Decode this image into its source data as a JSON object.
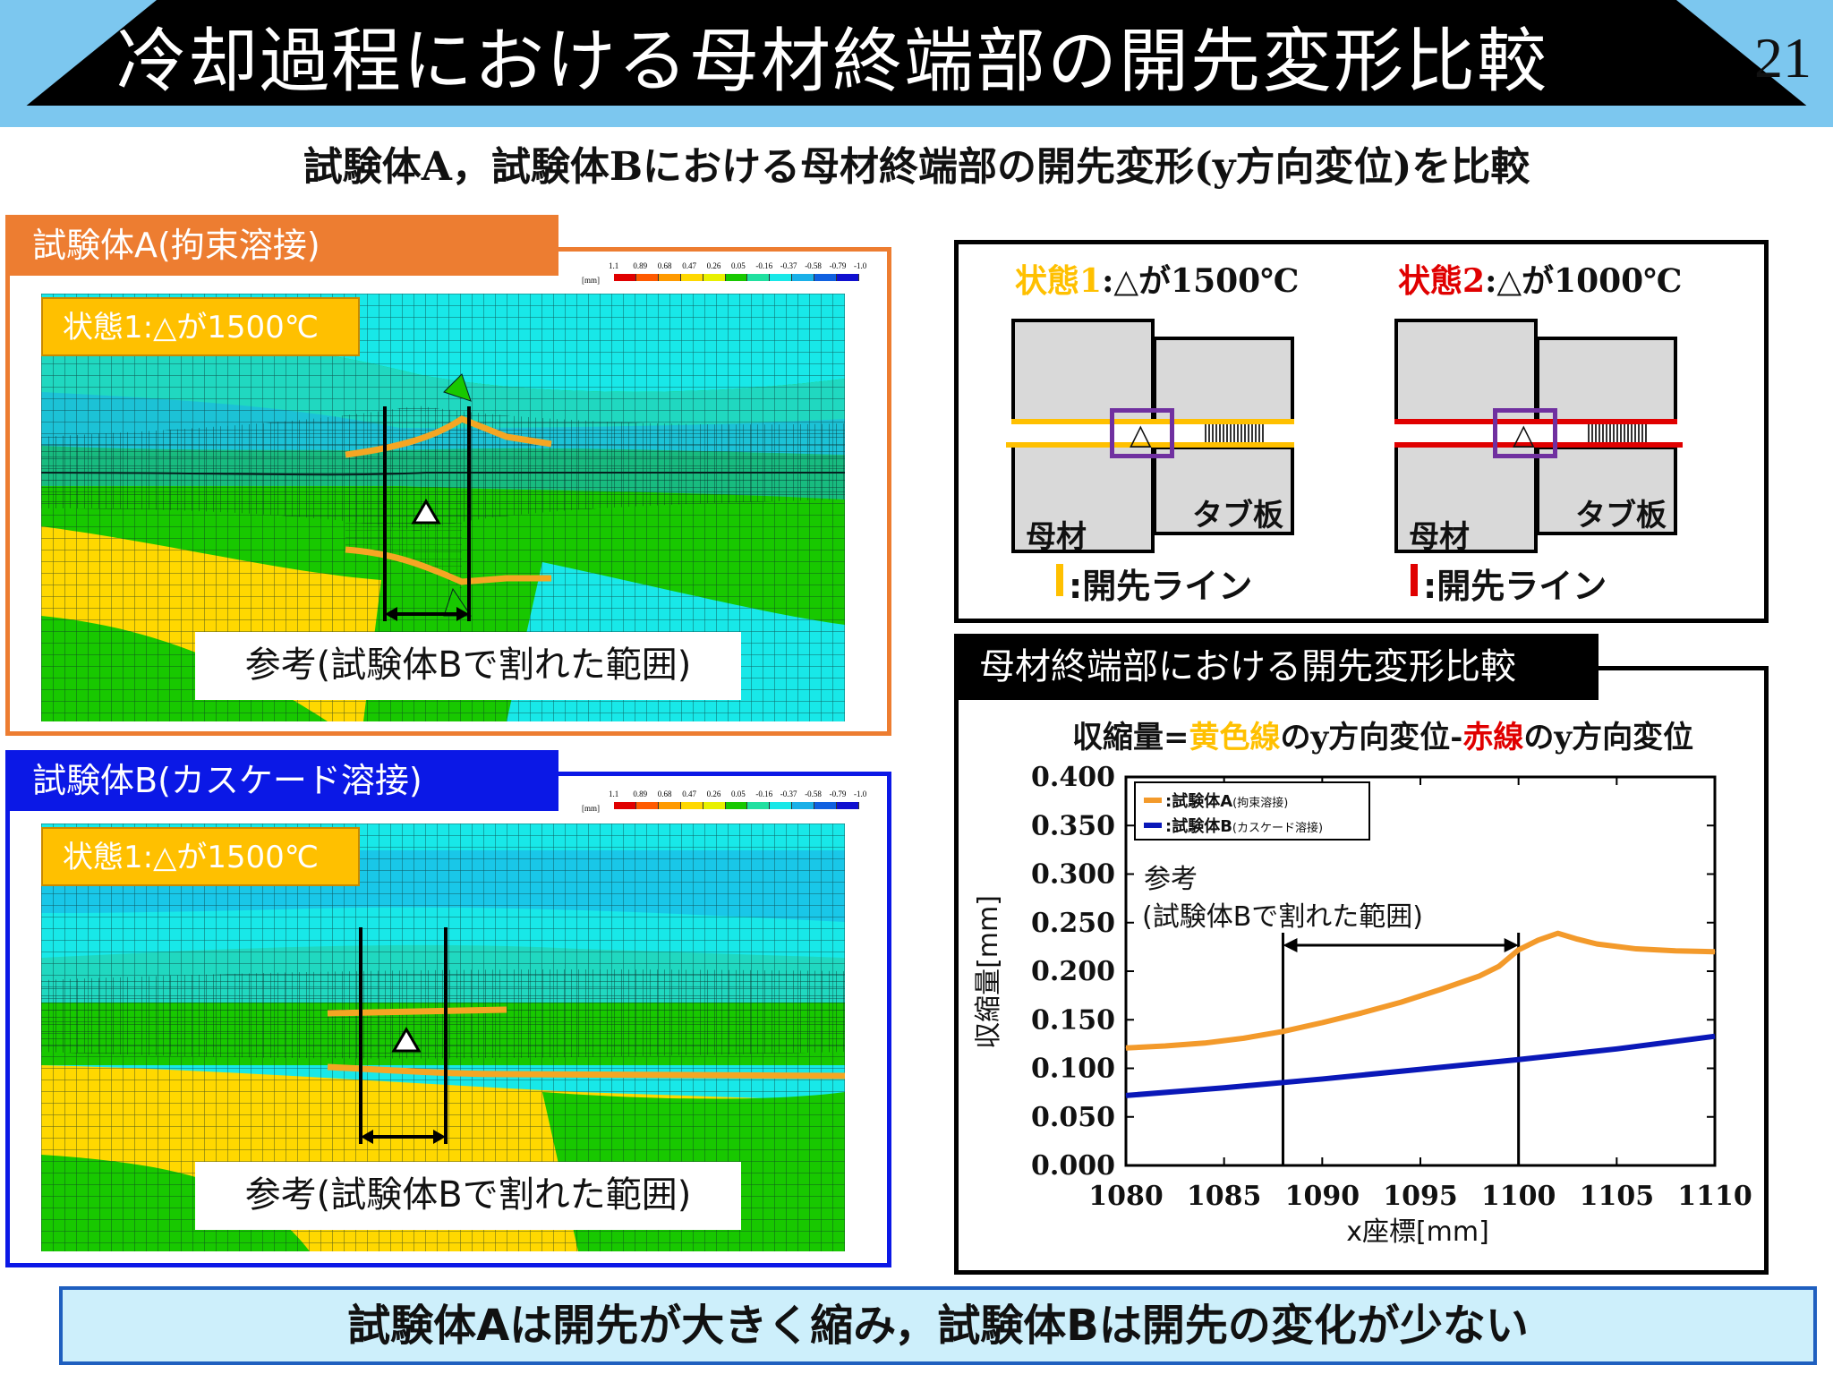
{
  "header": {
    "title": "冷却過程における母材終端部の開先変形比較",
    "page_number": "21"
  },
  "subtitle": "試験体A，試験体Bにおける母材終端部の開先変形(y方向変位)を比較",
  "panel_a": {
    "tab": "試験体A(拘束溶接)",
    "state_label": "状態1:△が1500℃",
    "ref_label": "参考(試験体Bで割れた範囲)",
    "marker": "△",
    "frame_color": "#ed7d31"
  },
  "panel_b": {
    "tab": "試験体B(カスケード溶接)",
    "state_label": "状態1:△が1500℃",
    "ref_label": "参考(試験体Bで割れた範囲)",
    "marker": "△",
    "frame_color": "#0b18e6"
  },
  "colorbar": {
    "unit": "[mm]",
    "ticks": [
      "1.1",
      "0.89",
      "0.68",
      "0.47",
      "0.26",
      "0.05",
      "-0.16",
      "-0.37",
      "-0.58",
      "-0.79",
      "-1.0"
    ],
    "colors": [
      "#e00000",
      "#ff5a00",
      "#ff9a00",
      "#ffd800",
      "#e8f000",
      "#18c800",
      "#20e0a0",
      "#18e8e8",
      "#1ab0e8",
      "#1060e0",
      "#1010d0"
    ]
  },
  "states": {
    "state1": {
      "prefix": "状態1",
      "text": ":△が1500℃",
      "color": "#ffc000",
      "legend": ":開先ライン"
    },
    "state2": {
      "prefix": "状態2",
      "text": ":△が1000℃",
      "color": "#e00000",
      "legend": ":開先ライン"
    },
    "base_label": "母材",
    "tab_label": "タブ板",
    "marker": "△"
  },
  "chart_box": {
    "tab": "母材終端部における開先変形比較",
    "formula": {
      "p1": "収縮量=",
      "p2": "黄色線",
      "p3": "のy方向変位-",
      "p4": "赤線",
      "p5": "のy方向変位"
    },
    "annotation": {
      "line1": "参考",
      "line2": "(試験体Bで割れた範囲)"
    }
  },
  "chart_data": {
    "type": "line",
    "xlabel": "x座標[mm]",
    "ylabel": "収縮量[mm]",
    "xlim": [
      1080,
      1110
    ],
    "ylim": [
      0.0,
      0.4
    ],
    "xticks": [
      "1080",
      "1085",
      "1090",
      "1095",
      "1100",
      "1105",
      "1110"
    ],
    "yticks": [
      "0.000",
      "0.050",
      "0.100",
      "0.150",
      "0.200",
      "0.250",
      "0.300",
      "0.350",
      "0.400"
    ],
    "legend_position": "top-left",
    "reference_range": [
      1088,
      1100
    ],
    "series": [
      {
        "name": ":試験体A",
        "name_suffix": "(拘束溶接)",
        "color": "#f39a2b",
        "x": [
          1080,
          1082,
          1084,
          1086,
          1088,
          1090,
          1092,
          1094,
          1096,
          1098,
          1099,
          1100,
          1101,
          1102,
          1103,
          1104,
          1106,
          1108,
          1110
        ],
        "y": [
          0.121,
          0.123,
          0.126,
          0.131,
          0.138,
          0.147,
          0.157,
          0.168,
          0.181,
          0.195,
          0.205,
          0.222,
          0.232,
          0.239,
          0.233,
          0.228,
          0.223,
          0.221,
          0.22
        ]
      },
      {
        "name": ":試験体B",
        "name_suffix": "(カスケード溶接)",
        "color": "#0a18b8",
        "x": [
          1080,
          1085,
          1090,
          1095,
          1100,
          1105,
          1110
        ],
        "y": [
          0.072,
          0.08,
          0.089,
          0.099,
          0.109,
          0.12,
          0.133
        ]
      }
    ]
  },
  "conclusion": "試験体Aは開先が大きく縮み，試験体Bは開先の変化が少ない"
}
